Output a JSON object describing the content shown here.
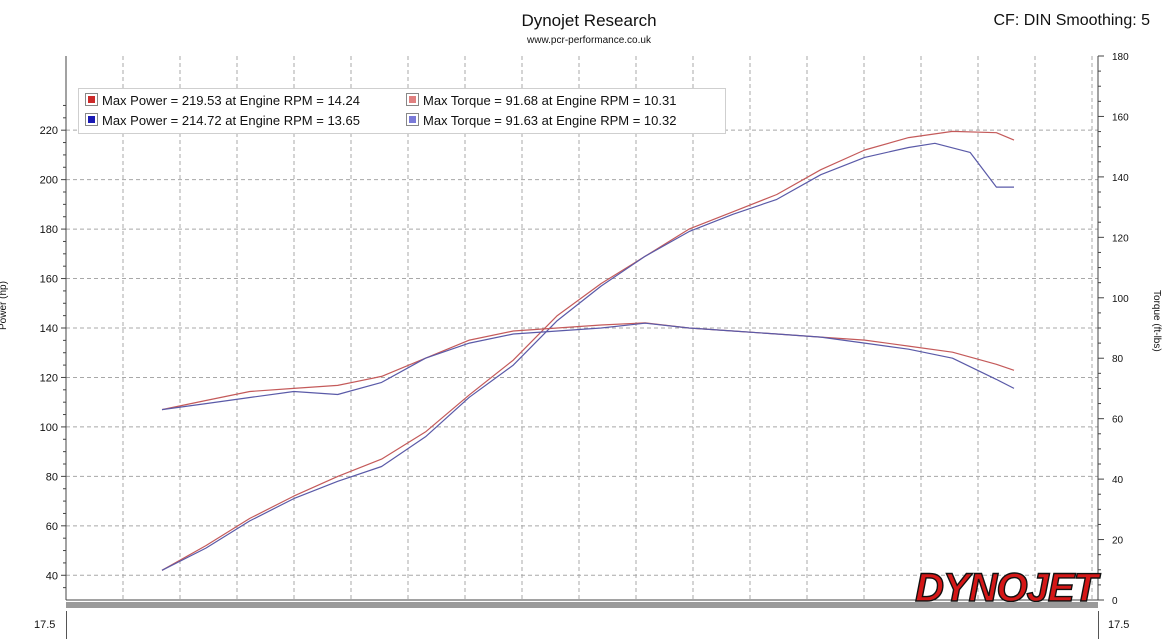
{
  "header": {
    "title": "Dynojet Research",
    "subtitle": "www.pcr-performance.co.uk",
    "correction": "CF: DIN Smoothing: 5"
  },
  "legend": [
    {
      "label": "Max Power = 219.53 at Engine RPM = 14.24",
      "color": "#cc2b2b"
    },
    {
      "label": "Max Power = 214.72 at Engine RPM = 13.65",
      "color": "#1a1ab4"
    },
    {
      "label": "Max Torque = 91.68 at Engine RPM = 10.31",
      "color": "#e08080"
    },
    {
      "label": "Max Torque = 91.63 at Engine RPM = 10.32",
      "color": "#7a7ad8"
    }
  ],
  "logo": {
    "text": "DYNOJET"
  },
  "bottom_panel": {
    "left_tick": "17.5",
    "right_tick": "17.5"
  },
  "chart_data": {
    "type": "line",
    "xlabel": "",
    "ylabel": "Power (hp)",
    "y2label": "Torque (ft-lbs)",
    "ylim": [
      30,
      250
    ],
    "y2lim": [
      0,
      180
    ],
    "yticks": [
      40,
      60,
      80,
      100,
      120,
      140,
      160,
      180,
      200,
      220
    ],
    "y2ticks": [
      0,
      20,
      40,
      60,
      80,
      100,
      120,
      140,
      160,
      180
    ],
    "grid": true,
    "legend_position": "top-left",
    "series": [
      {
        "axis": "left",
        "color": "#c45a5a",
        "points": [
          [
            0,
            42
          ],
          [
            5,
            52
          ],
          [
            10,
            63
          ],
          [
            15,
            72
          ],
          [
            20,
            80
          ],
          [
            25,
            87
          ],
          [
            30,
            98
          ],
          [
            35,
            113
          ],
          [
            40,
            127
          ],
          [
            45,
            145
          ],
          [
            50,
            158
          ],
          [
            55,
            169
          ],
          [
            60,
            180
          ],
          [
            65,
            187
          ],
          [
            70,
            194
          ],
          [
            75,
            204
          ],
          [
            80,
            212
          ],
          [
            85,
            217
          ],
          [
            90,
            219.5
          ],
          [
            95,
            219
          ],
          [
            97,
            216
          ]
        ]
      },
      {
        "axis": "left",
        "color": "#5a5aa8",
        "points": [
          [
            0,
            42
          ],
          [
            5,
            51
          ],
          [
            10,
            62
          ],
          [
            15,
            71
          ],
          [
            20,
            78
          ],
          [
            25,
            84
          ],
          [
            30,
            96
          ],
          [
            35,
            112
          ],
          [
            40,
            125
          ],
          [
            45,
            143
          ],
          [
            50,
            157
          ],
          [
            55,
            169
          ],
          [
            60,
            179
          ],
          [
            65,
            186
          ],
          [
            70,
            192
          ],
          [
            75,
            202
          ],
          [
            80,
            209
          ],
          [
            85,
            213
          ],
          [
            88,
            214.7
          ],
          [
            92,
            211
          ],
          [
            95,
            197
          ],
          [
            97,
            197
          ]
        ]
      },
      {
        "axis": "right",
        "color": "#c45a5a",
        "points": [
          [
            0,
            63
          ],
          [
            5,
            66
          ],
          [
            10,
            69
          ],
          [
            15,
            70
          ],
          [
            20,
            71
          ],
          [
            25,
            74
          ],
          [
            30,
            80
          ],
          [
            35,
            86
          ],
          [
            40,
            89
          ],
          [
            45,
            90
          ],
          [
            50,
            91
          ],
          [
            55,
            91.7
          ],
          [
            60,
            90
          ],
          [
            65,
            89
          ],
          [
            70,
            88
          ],
          [
            75,
            87
          ],
          [
            80,
            86
          ],
          [
            85,
            84
          ],
          [
            90,
            82
          ],
          [
            95,
            78
          ],
          [
            97,
            76
          ]
        ]
      },
      {
        "axis": "right",
        "color": "#5a5aa8",
        "points": [
          [
            0,
            63
          ],
          [
            5,
            65
          ],
          [
            10,
            67
          ],
          [
            15,
            69
          ],
          [
            20,
            68
          ],
          [
            25,
            72
          ],
          [
            30,
            80
          ],
          [
            35,
            85
          ],
          [
            40,
            88
          ],
          [
            45,
            89
          ],
          [
            50,
            90
          ],
          [
            55,
            91.6
          ],
          [
            60,
            90
          ],
          [
            65,
            89
          ],
          [
            70,
            88
          ],
          [
            75,
            87
          ],
          [
            80,
            85
          ],
          [
            85,
            83
          ],
          [
            90,
            80
          ],
          [
            95,
            73
          ],
          [
            97,
            70
          ]
        ]
      }
    ]
  }
}
